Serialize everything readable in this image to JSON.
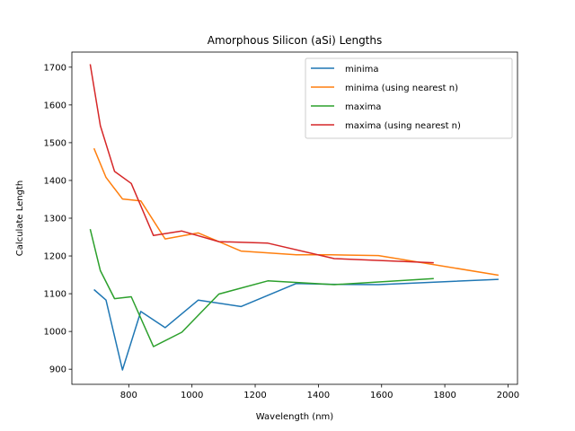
{
  "chart_data": {
    "type": "line",
    "title": "Amorphous Silicon (aSi) Lengths",
    "xlabel": "Wavelength (nm)",
    "ylabel": "Calculate Length",
    "xlim": [
      620,
      2030
    ],
    "ylim": [
      860,
      1740
    ],
    "xticks": [
      800,
      1000,
      1200,
      1400,
      1600,
      1800,
      2000
    ],
    "yticks": [
      900,
      1000,
      1100,
      1200,
      1300,
      1400,
      1500,
      1600,
      1700
    ],
    "grid": false,
    "legend_position": "top-right",
    "series": [
      {
        "name": "minima",
        "color": "#1f77b4",
        "points": [
          [
            690,
            1111
          ],
          [
            728,
            1083
          ],
          [
            780,
            898
          ],
          [
            838,
            1053
          ],
          [
            915,
            1010
          ],
          [
            1020,
            1083
          ],
          [
            1155,
            1066
          ],
          [
            1330,
            1127
          ],
          [
            1440,
            1125
          ],
          [
            1590,
            1124
          ],
          [
            1970,
            1138
          ]
        ]
      },
      {
        "name": "minima (using nearest n)",
        "color": "#ff7f0e",
        "points": [
          [
            690,
            1485
          ],
          [
            728,
            1408
          ],
          [
            780,
            1351
          ],
          [
            838,
            1346
          ],
          [
            915,
            1245
          ],
          [
            1020,
            1261
          ],
          [
            1155,
            1213
          ],
          [
            1330,
            1203
          ],
          [
            1440,
            1203
          ],
          [
            1590,
            1201
          ],
          [
            1970,
            1149
          ]
        ]
      },
      {
        "name": "maxima",
        "color": "#2ca02c",
        "points": [
          [
            678,
            1271
          ],
          [
            710,
            1161
          ],
          [
            755,
            1087
          ],
          [
            808,
            1092
          ],
          [
            878,
            960
          ],
          [
            968,
            998
          ],
          [
            1085,
            1099
          ],
          [
            1240,
            1134
          ],
          [
            1450,
            1124
          ],
          [
            1765,
            1140
          ]
        ]
      },
      {
        "name": "maxima (using nearest n)",
        "color": "#d62728",
        "points": [
          [
            678,
            1708
          ],
          [
            710,
            1545
          ],
          [
            755,
            1424
          ],
          [
            808,
            1392
          ],
          [
            878,
            1254
          ],
          [
            968,
            1266
          ],
          [
            1085,
            1238
          ],
          [
            1240,
            1234
          ],
          [
            1450,
            1193
          ],
          [
            1765,
            1182
          ]
        ]
      }
    ]
  }
}
